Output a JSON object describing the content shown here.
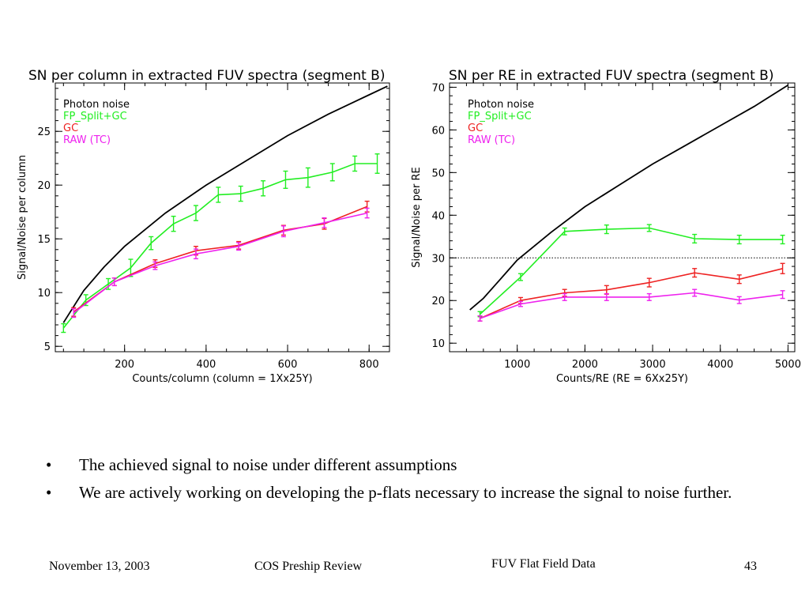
{
  "chart_data": [
    {
      "type": "line",
      "title": "SN per column in extracted FUV spectra (segment B)",
      "xlabel": "Counts/column (column = 1Xx25Y)",
      "ylabel": "Signal/Noise per column",
      "xlim": [
        30,
        850
      ],
      "ylim": [
        4.5,
        29.5
      ],
      "xticks": [
        200,
        400,
        600,
        800
      ],
      "yticks": [
        5,
        10,
        15,
        20,
        25
      ],
      "grid": false,
      "legend_position": "top-left",
      "series": [
        {
          "name": "Photon noise",
          "color": "#000000",
          "error_bars": false,
          "x": [
            50,
            100,
            150,
            200,
            300,
            400,
            500,
            600,
            700,
            800,
            845
          ],
          "y": [
            7.2,
            10.2,
            12.4,
            14.3,
            17.4,
            20.0,
            22.3,
            24.6,
            26.6,
            28.4,
            29.2
          ]
        },
        {
          "name": "FP_Split+GC",
          "color": "#22ee22",
          "error_bars": true,
          "x": [
            50,
            105,
            160,
            215,
            265,
            320,
            375,
            430,
            485,
            540,
            595,
            650,
            710,
            765,
            820
          ],
          "y": [
            6.7,
            9.3,
            10.8,
            12.3,
            14.6,
            16.4,
            17.4,
            19.1,
            19.2,
            19.7,
            20.5,
            20.7,
            21.2,
            22.0,
            22.0
          ],
          "err": [
            0.4,
            0.5,
            0.5,
            0.8,
            0.6,
            0.7,
            0.7,
            0.7,
            0.7,
            0.7,
            0.8,
            0.9,
            0.8,
            0.7,
            0.9
          ]
        },
        {
          "name": "GC",
          "color": "#ee2222",
          "error_bars": true,
          "x": [
            75,
            175,
            275,
            375,
            480,
            590,
            690,
            795
          ],
          "y": [
            8.2,
            11.0,
            12.7,
            13.9,
            14.4,
            15.8,
            16.4,
            18.0
          ],
          "err": [
            0.4,
            0.35,
            0.35,
            0.4,
            0.35,
            0.45,
            0.5,
            0.5
          ]
        },
        {
          "name": "RAW (TC)",
          "color": "#ee22ee",
          "error_bars": true,
          "x": [
            75,
            175,
            275,
            375,
            480,
            590,
            690,
            795
          ],
          "y": [
            8.1,
            11.0,
            12.5,
            13.6,
            14.3,
            15.7,
            16.5,
            17.4
          ],
          "err": [
            0.4,
            0.35,
            0.35,
            0.45,
            0.35,
            0.5,
            0.45,
            0.45
          ]
        }
      ]
    },
    {
      "type": "line",
      "title": "SN per RE in extracted FUV spectra (segment B)",
      "xlabel": "Counts/RE (RE = 6Xx25Y)",
      "ylabel": "Signal/Noise per RE",
      "xlim": [
        0,
        5100
      ],
      "ylim": [
        8,
        71
      ],
      "xticks": [
        1000,
        2000,
        3000,
        4000,
        5000
      ],
      "yticks": [
        10,
        20,
        30,
        40,
        50,
        60,
        70
      ],
      "grid": false,
      "legend_position": "top-left",
      "reference_line_y": 30,
      "series": [
        {
          "name": "Photon noise",
          "color": "#000000",
          "error_bars": false,
          "x": [
            300,
            500,
            750,
            1000,
            1500,
            2000,
            2500,
            3000,
            3500,
            4000,
            4500,
            5000
          ],
          "y": [
            17.8,
            20.5,
            25.0,
            29.5,
            36.0,
            42.0,
            47.0,
            52.0,
            56.5,
            61.0,
            65.5,
            70.5
          ]
        },
        {
          "name": "FP_Split+GC",
          "color": "#22ee22",
          "error_bars": true,
          "x": [
            450,
            1050,
            1700,
            2320,
            2950,
            3620,
            4280,
            4920
          ],
          "y": [
            16.8,
            25.5,
            36.2,
            36.7,
            37.0,
            34.5,
            34.3,
            34.3
          ],
          "err": [
            0.6,
            0.8,
            0.8,
            1.0,
            0.8,
            1.0,
            1.0,
            1.0
          ]
        },
        {
          "name": "GC",
          "color": "#ee2222",
          "error_bars": true,
          "x": [
            450,
            1050,
            1700,
            2320,
            2950,
            3620,
            4280,
            4920
          ],
          "y": [
            15.8,
            20.0,
            21.8,
            22.5,
            24.2,
            26.5,
            25.0,
            27.5
          ],
          "err": [
            0.6,
            0.7,
            0.8,
            1.0,
            1.0,
            1.0,
            1.0,
            1.2
          ]
        },
        {
          "name": "RAW (TC)",
          "color": "#ee22ee",
          "error_bars": true,
          "x": [
            450,
            1050,
            1700,
            2320,
            2950,
            3620,
            4280,
            4920
          ],
          "y": [
            15.8,
            19.2,
            20.8,
            20.8,
            20.8,
            21.8,
            20.1,
            21.4
          ],
          "err": [
            0.6,
            0.6,
            0.8,
            0.8,
            0.8,
            0.8,
            0.8,
            0.9
          ]
        }
      ]
    }
  ],
  "bullets": [
    "The achieved signal to noise under different assumptions",
    "We are actively working on developing the p-flats necessary to increase the signal to noise further."
  ],
  "bullet_symbol": "•",
  "footer": {
    "date": "November 13, 2003",
    "event": "COS Preship Review",
    "topic": "FUV Flat Field Data",
    "page": "43"
  }
}
